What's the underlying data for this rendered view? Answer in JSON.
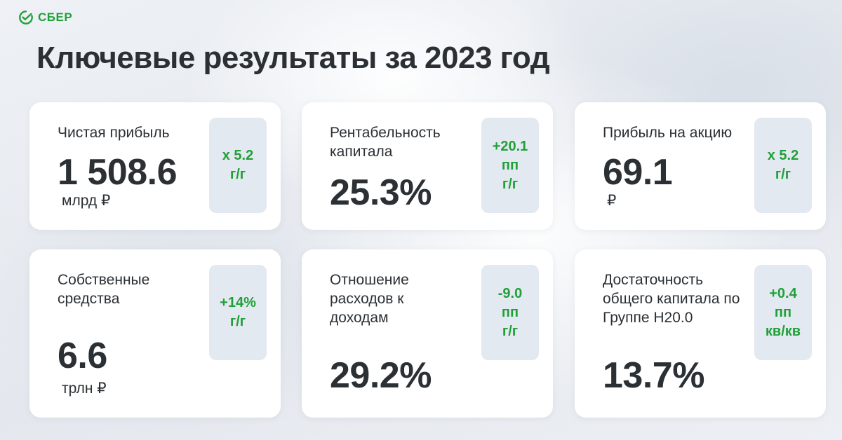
{
  "brand": {
    "name": "СБЕР",
    "logo_icon": "sber-logo-icon",
    "color": "#21a038"
  },
  "title": "Ключевые результаты за 2023 год",
  "colors": {
    "accent": "#21a038",
    "text": "#2b3035",
    "badge_bg": "#e3e9f0",
    "card_bg": "#ffffff"
  },
  "cards": [
    {
      "label": "Чистая прибыль",
      "value": "1 508.6",
      "unit": "млрд ₽",
      "badge": [
        "x 5.2",
        "г/г"
      ]
    },
    {
      "label": "Рентабельность капитала",
      "value": "25.3%",
      "unit": "",
      "badge": [
        "+20.1",
        "пп",
        "г/г"
      ]
    },
    {
      "label": "Прибыль на акцию",
      "value": "69.1",
      "unit": "₽",
      "badge": [
        "x 5.2",
        "г/г"
      ]
    },
    {
      "label": "Собственные средства",
      "value": "6.6",
      "unit": "трлн ₽",
      "badge": [
        "+14%",
        "г/г"
      ]
    },
    {
      "label": "Отношение расходов к доходам",
      "value": "29.2%",
      "unit": "",
      "badge": [
        "-9.0",
        "пп",
        "г/г"
      ]
    },
    {
      "label": "Достаточность общего капитала по Группе Н20.0",
      "value": "13.7%",
      "unit": "",
      "badge": [
        "+0.4",
        "пп",
        "кв/кв"
      ]
    }
  ]
}
